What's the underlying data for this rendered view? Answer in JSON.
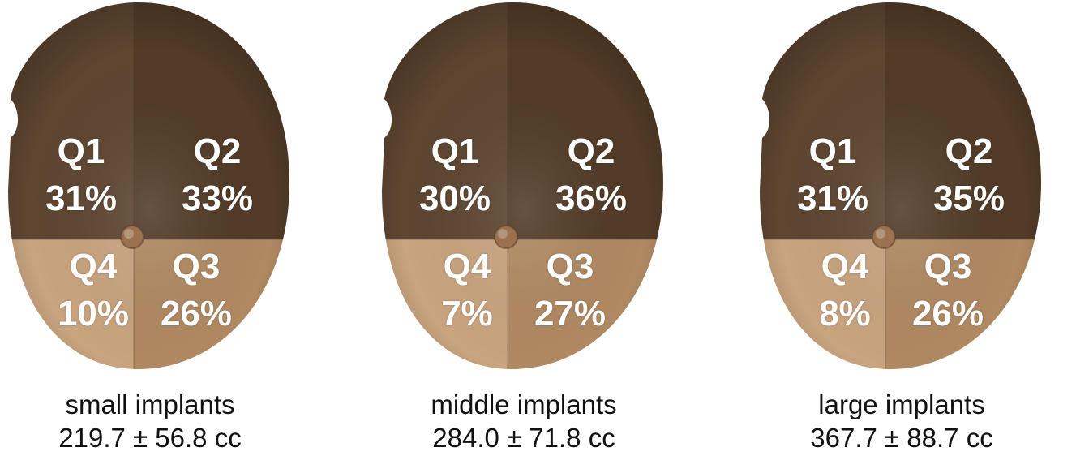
{
  "panels": [
    {
      "group": "small implants",
      "volume": "219.7 ± 56.8 cc",
      "quadrants": {
        "q1": {
          "label": "Q1",
          "value": "31%"
        },
        "q2": {
          "label": "Q2",
          "value": "33%"
        },
        "q3": {
          "label": "Q3",
          "value": "26%"
        },
        "q4": {
          "label": "Q4",
          "value": "10%"
        }
      }
    },
    {
      "group": "middle implants",
      "volume": "284.0 ± 71.8 cc",
      "quadrants": {
        "q1": {
          "label": "Q1",
          "value": "30%"
        },
        "q2": {
          "label": "Q2",
          "value": "36%"
        },
        "q3": {
          "label": "Q3",
          "value": "27%"
        },
        "q4": {
          "label": "Q4",
          "value": "7%"
        }
      }
    },
    {
      "group": "large implants",
      "volume": "367.7 ± 88.7 cc",
      "quadrants": {
        "q1": {
          "label": "Q1",
          "value": "31%"
        },
        "q2": {
          "label": "Q2",
          "value": "35%"
        },
        "q3": {
          "label": "Q3",
          "value": "26%"
        },
        "q4": {
          "label": "Q4",
          "value": "8%"
        }
      }
    }
  ],
  "colors": {
    "q1": "#5e4631",
    "q2": "#523b27",
    "q3": "#b08962",
    "q4": "#c9a47f",
    "nipple": "#9a7250"
  }
}
